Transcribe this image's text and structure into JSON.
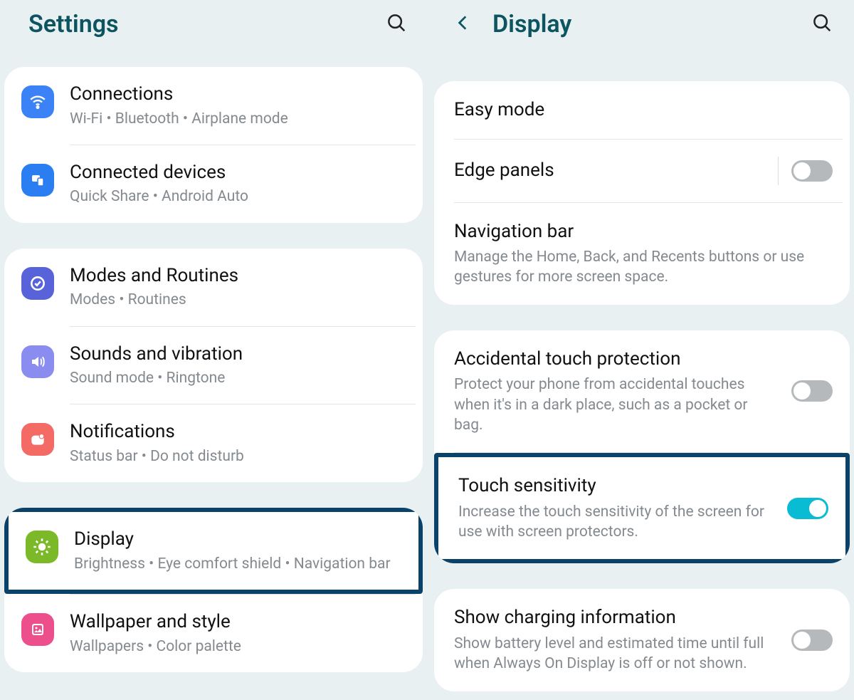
{
  "left": {
    "title": "Settings",
    "groups": [
      {
        "items": [
          {
            "title": "Connections",
            "sub": "Wi-Fi  •  Bluetooth  •  Airplane mode",
            "icon": "wifi",
            "color": "ic-blue"
          },
          {
            "title": "Connected devices",
            "sub": "Quick Share  •  Android Auto",
            "icon": "devices",
            "color": "ic-blue2"
          }
        ]
      },
      {
        "items": [
          {
            "title": "Modes and Routines",
            "sub": "Modes  •  Routines",
            "icon": "check",
            "color": "ic-indigo"
          },
          {
            "title": "Sounds and vibration",
            "sub": "Sound mode  •  Ringtone",
            "icon": "sound",
            "color": "ic-violet"
          },
          {
            "title": "Notifications",
            "sub": "Status bar  •  Do not disturb",
            "icon": "notif",
            "color": "ic-coral"
          }
        ]
      },
      {
        "items": [
          {
            "title": "Display",
            "sub": "Brightness  •  Eye comfort shield  •  Navigation bar",
            "icon": "sun",
            "color": "ic-green",
            "highlight": true
          },
          {
            "title": "Wallpaper and style",
            "sub": "Wallpapers  •  Color palette",
            "icon": "image",
            "color": "ic-pink"
          }
        ]
      }
    ]
  },
  "right": {
    "title": "Display",
    "groups": [
      {
        "items": [
          {
            "title": "Easy mode"
          },
          {
            "title": "Edge panels",
            "toggle": "off",
            "vline": true
          },
          {
            "title": "Navigation bar",
            "sub": "Manage the Home, Back, and Recents buttons or use gestures for more screen space."
          }
        ]
      },
      {
        "items": [
          {
            "title": "Accidental touch protection",
            "sub": "Protect your phone from accidental touches when it's in a dark place, such as a pocket or bag.",
            "toggle": "off"
          },
          {
            "title": "Touch sensitivity",
            "sub": "Increase the touch sensitivity of the screen for use with screen protectors.",
            "toggle": "on",
            "highlight": true
          }
        ]
      },
      {
        "items": [
          {
            "title": "Show charging information",
            "sub": "Show battery level and estimated time until full when Always On Display is off or not shown.",
            "toggle": "off"
          }
        ]
      }
    ]
  }
}
